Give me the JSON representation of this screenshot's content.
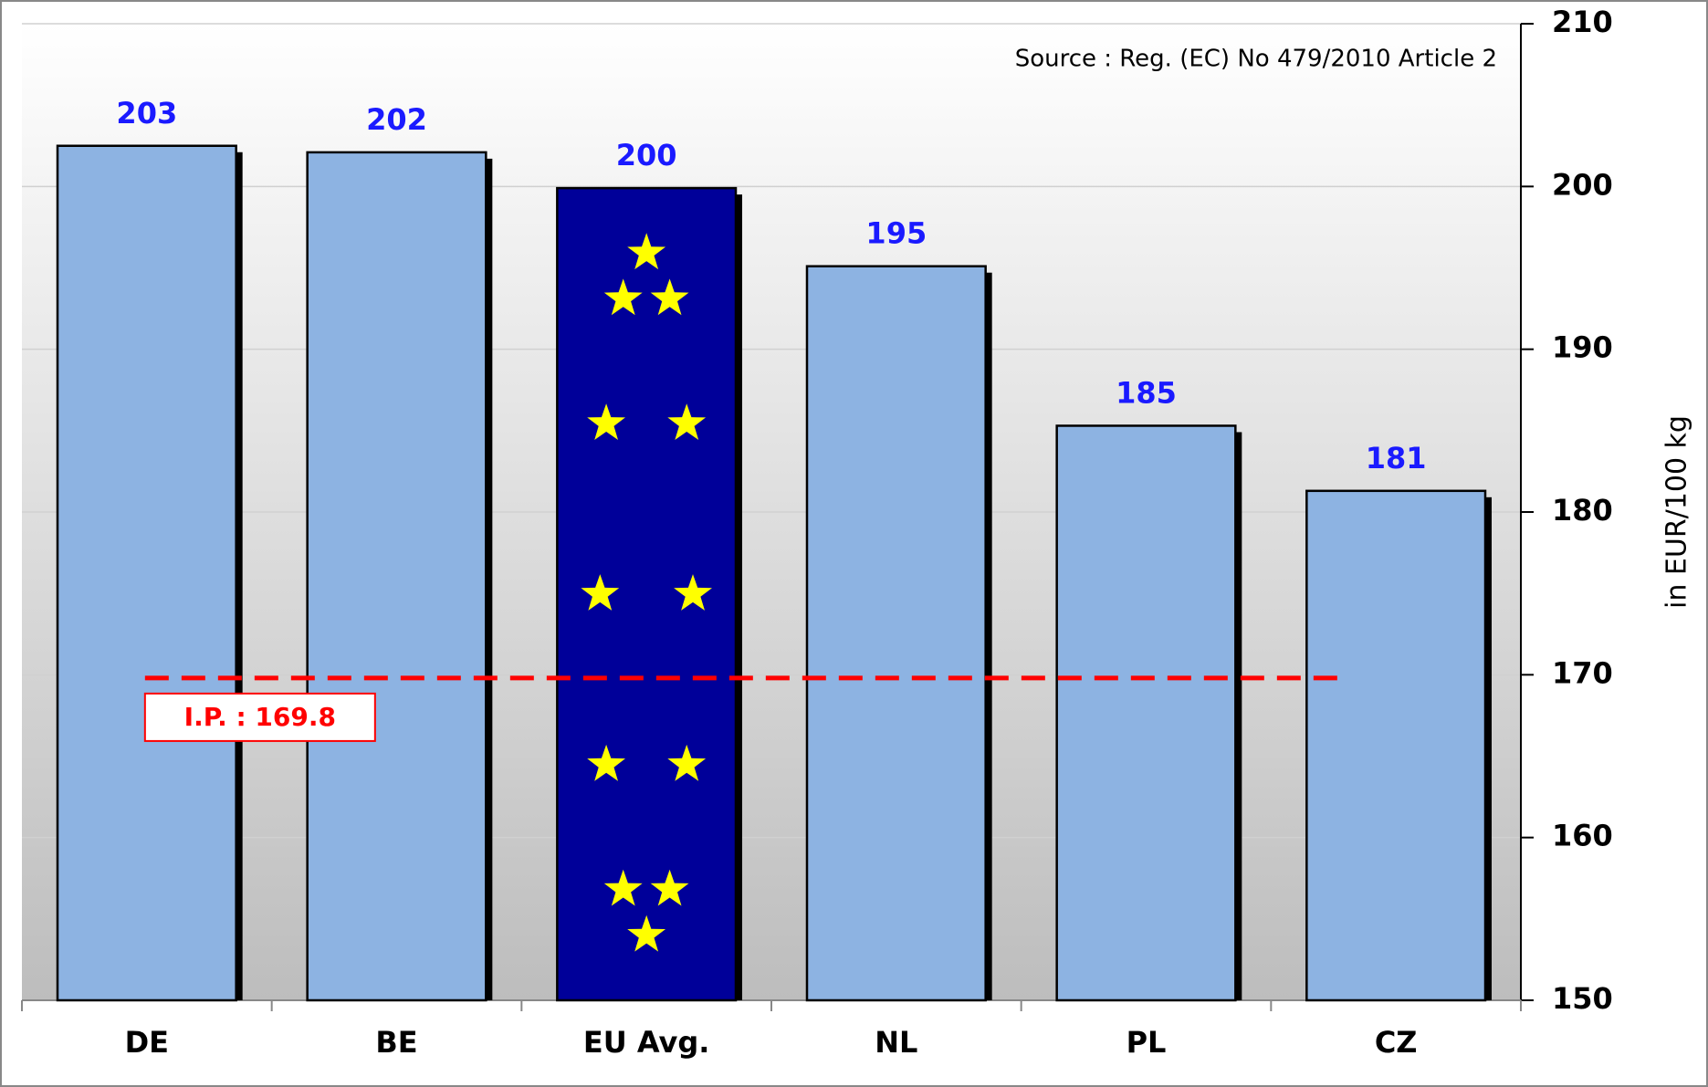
{
  "chart_data": {
    "type": "bar",
    "source": "Source : Reg. (EC) No 479/2010 Article 2",
    "y_axis_label": "in EUR/100 kg",
    "categories": [
      "DE",
      "BE",
      "EU Avg.",
      "NL",
      "PL",
      "CZ"
    ],
    "values": [
      202.5,
      202.1,
      199.9,
      195.1,
      185.3,
      181.3
    ],
    "value_labels": [
      "203",
      "202",
      "200",
      "195",
      "185",
      "181"
    ],
    "colors": [
      "#8db3e2",
      "#8db3e2",
      "#000099",
      "#8db3e2",
      "#8db3e2",
      "#8db3e2"
    ],
    "value_label_color": "#1a1aff",
    "reference_line": {
      "value": 169.8,
      "label": "I.P. : 169.8",
      "color": "#ff0000"
    },
    "ylim": [
      150,
      210
    ],
    "yticks": [
      150,
      160,
      170,
      180,
      190,
      200,
      210
    ],
    "y_axis_side": "right",
    "grid": true
  }
}
